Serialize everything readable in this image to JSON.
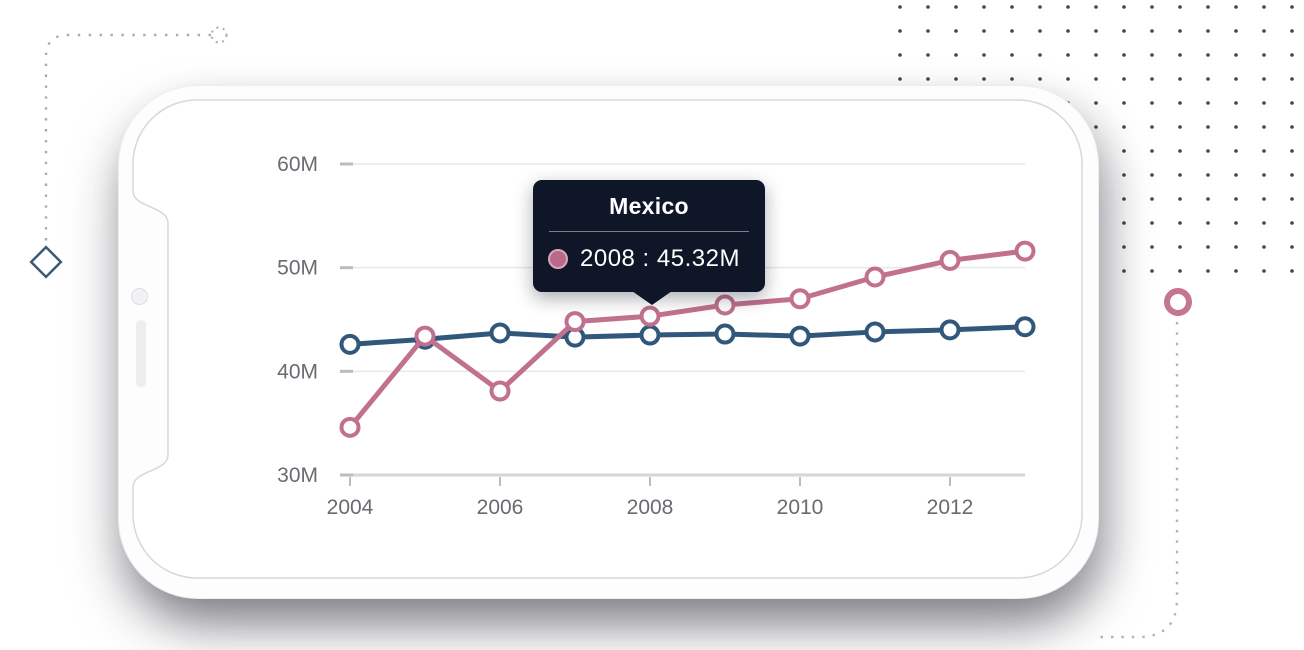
{
  "page": {
    "background": "#ffffff"
  },
  "colors": {
    "series_mexico": "#c1718e",
    "series_secondary": "#31587a",
    "tooltip_background": "#0e1627",
    "tooltip_marker": "#bb6989",
    "grid_line": "#e8e8ea",
    "axis_line": "#d6d6d8",
    "tick": "#bcbcbf",
    "axis_text": "#686b70"
  },
  "tooltip": {
    "title": "Mexico",
    "entry": "2008 : 45.32M",
    "marker_color": "#bb6989",
    "background": "#0e1627"
  },
  "chart_data": {
    "type": "line",
    "x": [
      2004,
      2005,
      2006,
      2007,
      2008,
      2009,
      2010,
      2011,
      2012,
      2013
    ],
    "series": [
      {
        "name": "Mexico",
        "color": "#c1718e",
        "values": [
          34.6,
          43.4,
          38.1,
          44.8,
          45.32,
          46.4,
          47.0,
          49.1,
          50.7,
          51.6
        ]
      },
      {
        "name": "",
        "color": "#31587a",
        "values": [
          42.6,
          43.1,
          43.7,
          43.3,
          43.5,
          43.6,
          43.4,
          43.8,
          44.0,
          44.3
        ]
      }
    ],
    "ytick_labels": [
      "30M",
      "40M",
      "50M",
      "60M"
    ],
    "ytick_values": [
      30,
      40,
      50,
      60
    ],
    "xtick_labels": [
      "2004",
      "2006",
      "2008",
      "2010",
      "2012"
    ],
    "xtick_values": [
      2004,
      2006,
      2008,
      2010,
      2012
    ],
    "ylim": [
      30,
      60
    ],
    "xlim": [
      2004,
      2013
    ],
    "grid": true,
    "legend": false,
    "marker": "open-circle",
    "highlighted_point": {
      "series": "Mexico",
      "x": 2008,
      "label": "45.32M"
    }
  }
}
